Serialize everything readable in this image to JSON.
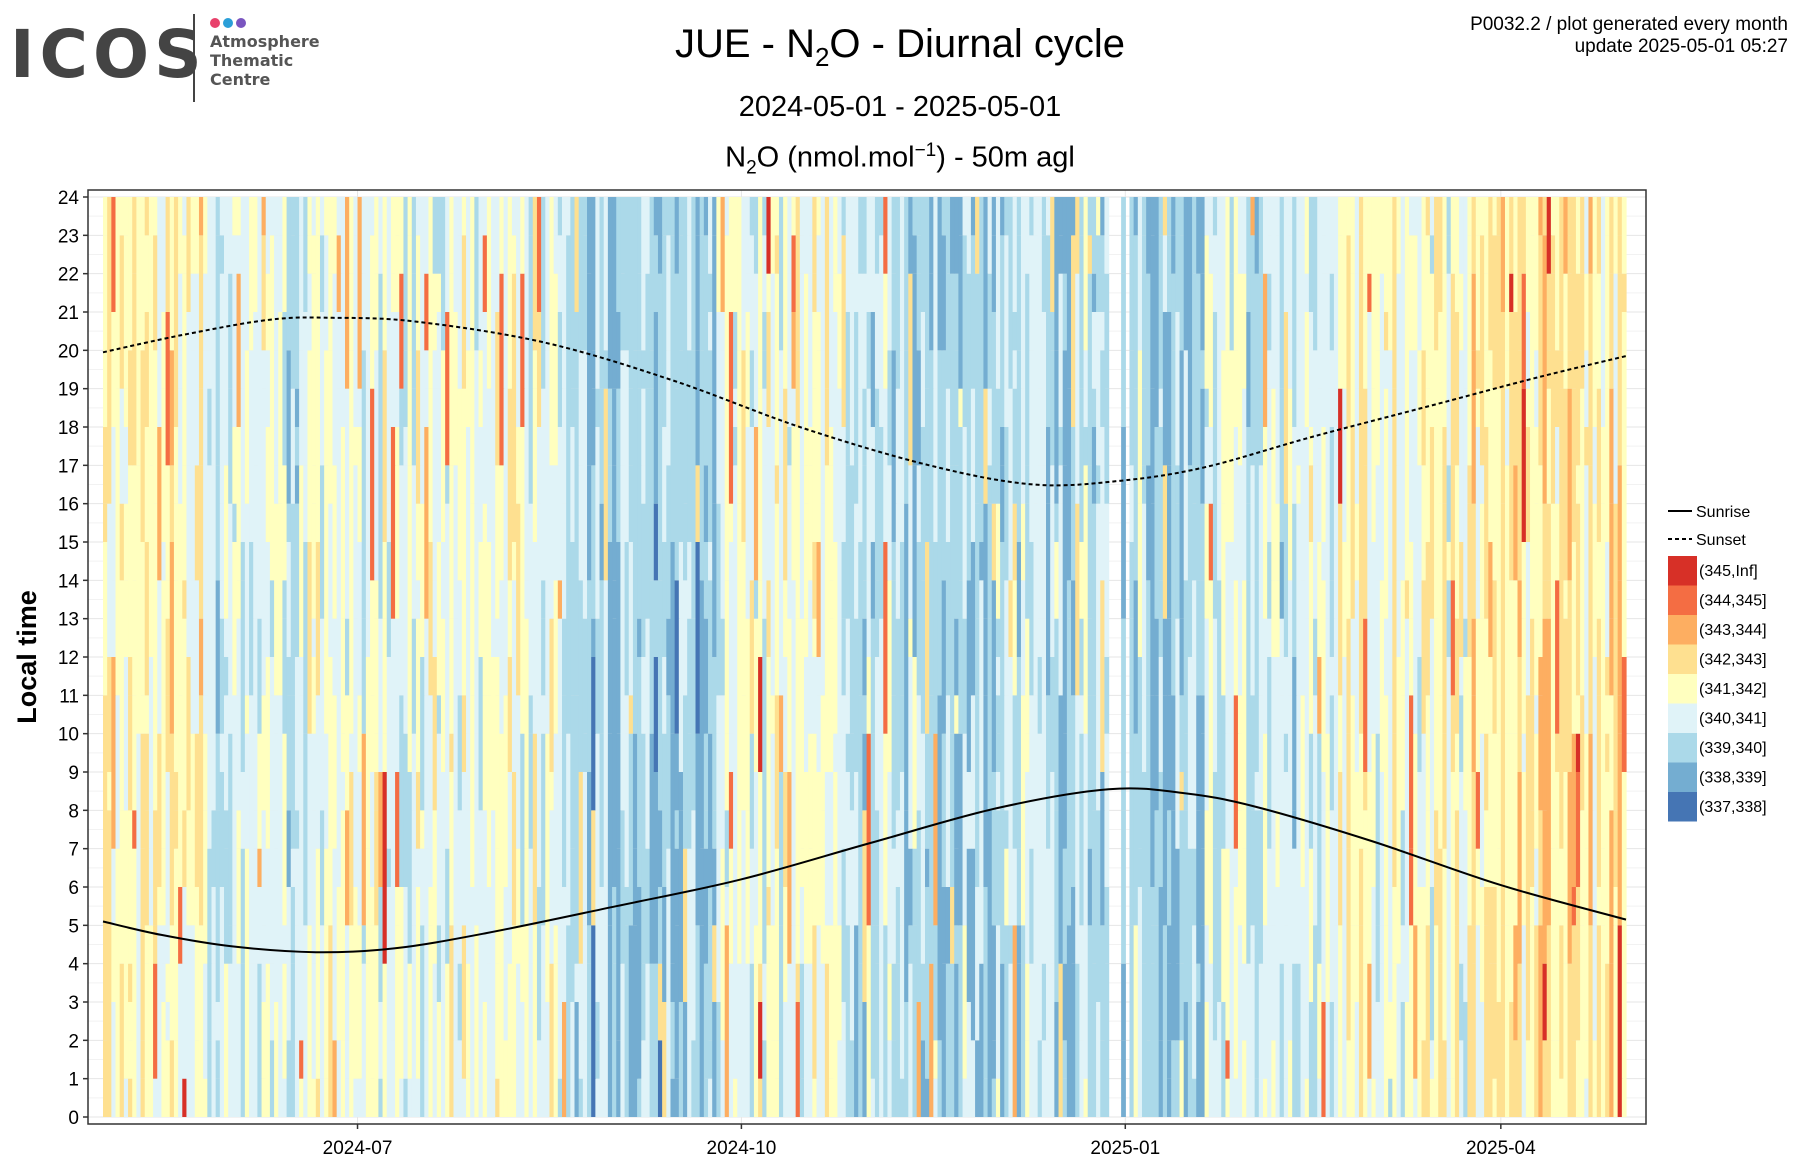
{
  "logo": {
    "wordmark": "ICOS",
    "line1": "Atmosphere",
    "line2": "Thematic",
    "line3": "Centre",
    "dot_colors": [
      "#e8416b",
      "#2a9fd8",
      "#7a55c0"
    ]
  },
  "header": {
    "title_prefix": "JUE - N",
    "title_sub": "2",
    "title_suffix": "O - Diurnal cycle",
    "period": "2024-05-01 - 2025-05-01",
    "species_prefix": "N",
    "species_sub": "2",
    "species_mid": "O (nmol.mol",
    "species_sup": "−1",
    "species_suffix": ") - 50m agl",
    "meta_line1": "P0032.2 / plot generated every month",
    "meta_line2": "update  2025-05-01 05:27"
  },
  "chart_data": {
    "type": "heatmap",
    "ylabel": "Local time",
    "xlabel": "",
    "x_start": "2024-05-01",
    "x_end": "2025-05-01",
    "ylim": [
      0,
      24
    ],
    "y_ticks": [
      "0",
      "1",
      "2",
      "3",
      "4",
      "5",
      "6",
      "7",
      "8",
      "9",
      "10",
      "11",
      "12",
      "13",
      "14",
      "15",
      "16",
      "17",
      "18",
      "19",
      "20",
      "21",
      "22",
      "23",
      "24"
    ],
    "x_ticks": [
      {
        "label": "2024-07",
        "date": "2024-07-01"
      },
      {
        "label": "2024-10",
        "date": "2024-10-01"
      },
      {
        "label": "2025-01",
        "date": "2025-01-01"
      },
      {
        "label": "2025-04",
        "date": "2025-04-01"
      }
    ],
    "grid": true,
    "legend_position": "right",
    "lines": [
      {
        "name": "Sunrise",
        "style": "solid",
        "points": [
          [
            "2024-05-01",
            5.1
          ],
          [
            "2024-05-15",
            4.75
          ],
          [
            "2024-06-01",
            4.45
          ],
          [
            "2024-06-21",
            4.3
          ],
          [
            "2024-07-10",
            4.4
          ],
          [
            "2024-08-01",
            4.8
          ],
          [
            "2024-09-01",
            5.5
          ],
          [
            "2024-10-01",
            6.2
          ],
          [
            "2024-11-01",
            7.15
          ],
          [
            "2024-12-01",
            8.05
          ],
          [
            "2024-12-28",
            8.55
          ],
          [
            "2025-01-15",
            8.45
          ],
          [
            "2025-02-01",
            8.1
          ],
          [
            "2025-03-01",
            7.2
          ],
          [
            "2025-04-01",
            6.05
          ],
          [
            "2025-05-01",
            5.15
          ]
        ]
      },
      {
        "name": "Sunset",
        "style": "dashed",
        "points": [
          [
            "2024-05-01",
            19.95
          ],
          [
            "2024-05-20",
            20.4
          ],
          [
            "2024-06-10",
            20.8
          ],
          [
            "2024-06-25",
            20.85
          ],
          [
            "2024-07-15",
            20.75
          ],
          [
            "2024-08-15",
            20.2
          ],
          [
            "2024-09-15",
            19.2
          ],
          [
            "2024-10-15",
            18.0
          ],
          [
            "2024-11-15",
            17.0
          ],
          [
            "2024-12-10",
            16.5
          ],
          [
            "2024-12-31",
            16.6
          ],
          [
            "2025-01-20",
            16.95
          ],
          [
            "2025-02-15",
            17.75
          ],
          [
            "2025-03-15",
            18.55
          ],
          [
            "2025-04-10",
            19.3
          ],
          [
            "2025-05-01",
            19.85
          ]
        ]
      }
    ],
    "bins": [
      {
        "label": "(345,Inf]",
        "color": "#d73027"
      },
      {
        "label": "(344,345]",
        "color": "#f46d43"
      },
      {
        "label": "(343,344]",
        "color": "#fdae61"
      },
      {
        "label": "(342,343]",
        "color": "#fee090"
      },
      {
        "label": "(341,342]",
        "color": "#ffffbf"
      },
      {
        "label": "(340,341]",
        "color": "#e0f3f8"
      },
      {
        "label": "(339,340]",
        "color": "#abd9e9"
      },
      {
        "label": "(338,339]",
        "color": "#74add1"
      },
      {
        "label": "(337,338]",
        "color": "#4575b4"
      }
    ],
    "cells_note": "",
    "periods": [
      {
        "from": "2024-05-01",
        "to": "2024-05-25",
        "level": 4.2
      },
      {
        "from": "2024-05-25",
        "to": "2024-06-20",
        "level": 3.0
      },
      {
        "from": "2024-06-20",
        "to": "2024-07-20",
        "level": 3.2
      },
      {
        "from": "2024-07-20",
        "to": "2024-08-20",
        "level": 3.4
      },
      {
        "from": "2024-08-20",
        "to": "2024-09-25",
        "level": 1.9
      },
      {
        "from": "2024-09-25",
        "to": "2024-10-25",
        "level": 3.6
      },
      {
        "from": "2024-10-25",
        "to": "2024-12-15",
        "level": 2.3
      },
      {
        "from": "2024-12-15",
        "to": "2025-01-20",
        "level": 2.2
      },
      {
        "from": "2025-01-20",
        "to": "2025-02-20",
        "level": 2.8
      },
      {
        "from": "2025-02-20",
        "to": "2025-03-25",
        "level": 3.8
      },
      {
        "from": "2025-03-25",
        "to": "2025-05-01",
        "level": 4.6
      }
    ]
  }
}
